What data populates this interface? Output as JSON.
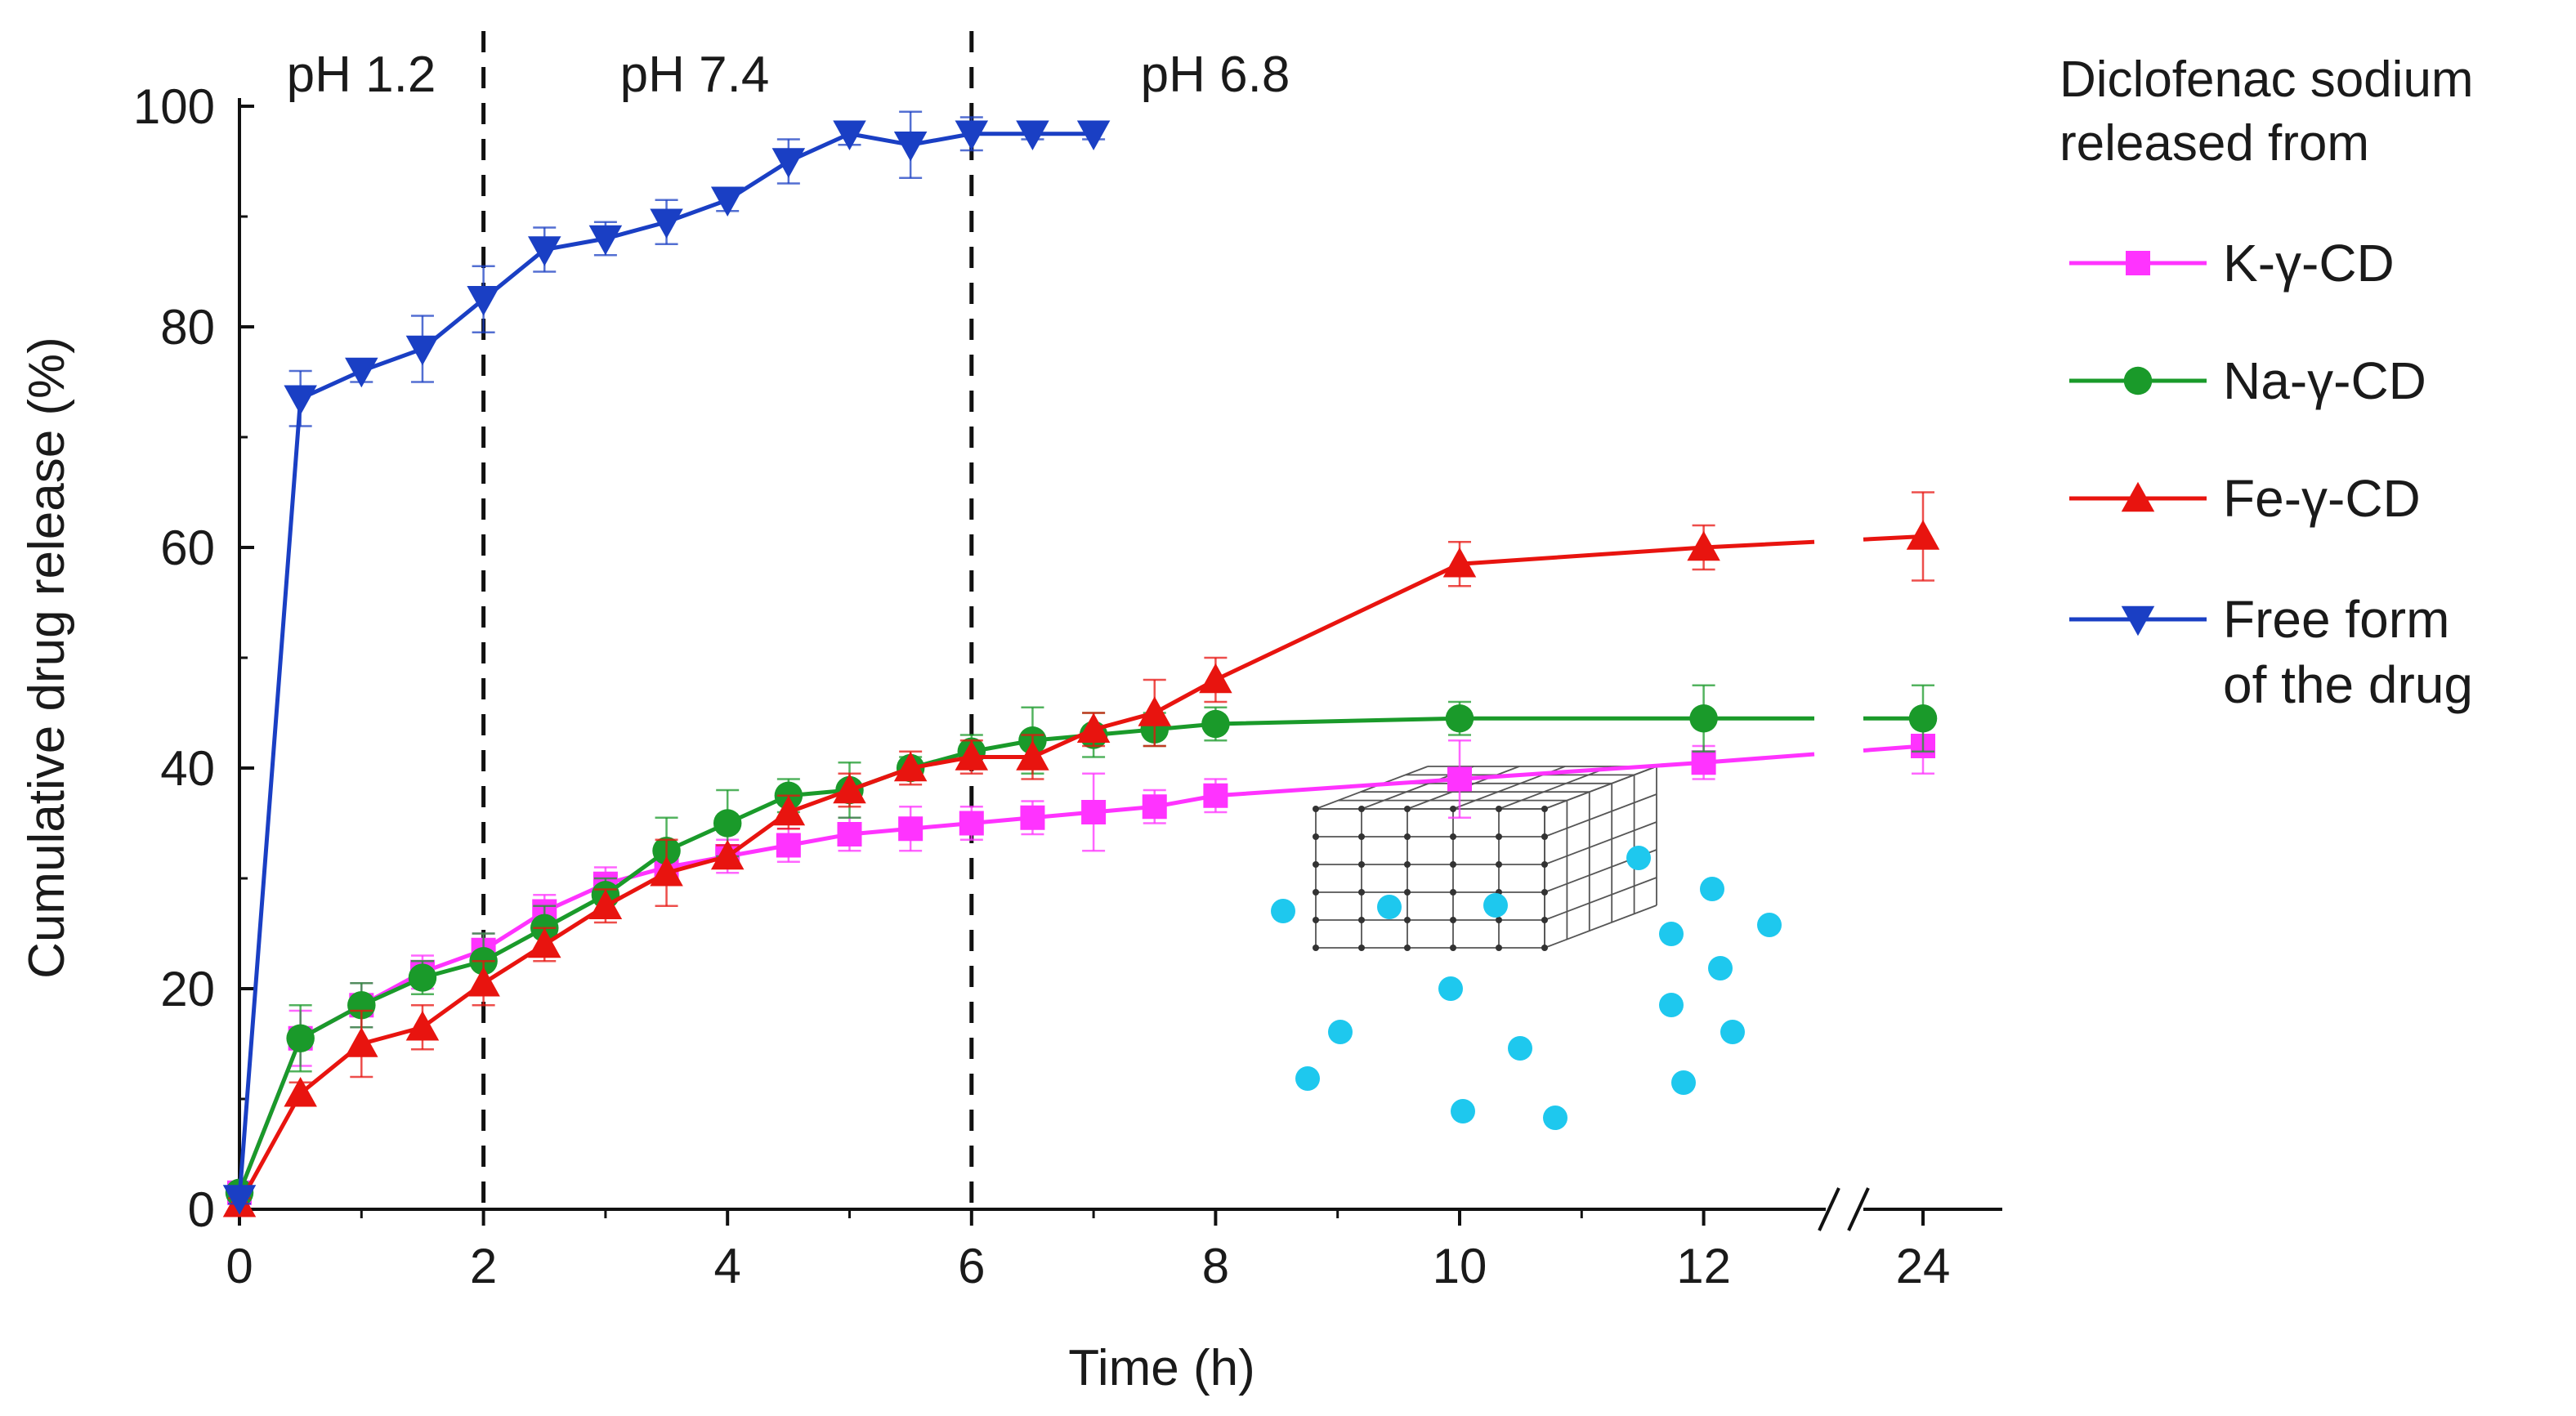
{
  "chart_data": {
    "type": "line",
    "title": "",
    "xlabel": "Time (h)",
    "ylabel": "Cumulative drug release (%)",
    "ylim": [
      0,
      100
    ],
    "x_ticks": [
      0,
      2,
      4,
      6,
      8,
      10,
      12,
      24
    ],
    "x_tick_labels": [
      "0",
      "2",
      "4",
      "6",
      "8",
      "10",
      "12",
      "24"
    ],
    "y_ticks": [
      0,
      20,
      40,
      60,
      80,
      100
    ],
    "y_tick_labels": [
      "0",
      "20",
      "40",
      "60",
      "80",
      "100"
    ],
    "axis_break": "between 12 and 24",
    "phase_dividers": [
      2,
      6
    ],
    "phase_labels": [
      "pH 1.2",
      "pH 7.4",
      "pH 6.8"
    ],
    "legend": {
      "title_lines": [
        "Diclofenac sodium",
        "released from"
      ],
      "placement": "right"
    },
    "series": [
      {
        "name": "K-γ-CD",
        "label_lines": [
          "K-γ-CD"
        ],
        "color": "#ff33ff",
        "marker": "square",
        "points": [
          {
            "x": 0,
            "y": 1.5,
            "err": 0.5
          },
          {
            "x": 0.5,
            "y": 15.5,
            "err": 2.5
          },
          {
            "x": 1,
            "y": 18.5,
            "err": 2
          },
          {
            "x": 1.5,
            "y": 21.5,
            "err": 1.5
          },
          {
            "x": 2,
            "y": 23.5,
            "err": 1.5
          },
          {
            "x": 2.5,
            "y": 27,
            "err": 1.5
          },
          {
            "x": 3,
            "y": 29.5,
            "err": 1.5
          },
          {
            "x": 3.5,
            "y": 31,
            "err": 1.5
          },
          {
            "x": 4,
            "y": 32,
            "err": 1.5
          },
          {
            "x": 4.5,
            "y": 33,
            "err": 1.5
          },
          {
            "x": 5,
            "y": 34,
            "err": 1.5
          },
          {
            "x": 5.5,
            "y": 34.5,
            "err": 2
          },
          {
            "x": 6,
            "y": 35,
            "err": 1.5
          },
          {
            "x": 6.5,
            "y": 35.5,
            "err": 1.5
          },
          {
            "x": 7,
            "y": 36,
            "err": 3.5
          },
          {
            "x": 7.5,
            "y": 36.5,
            "err": 1.5
          },
          {
            "x": 8,
            "y": 37.5,
            "err": 1.5
          },
          {
            "x": 10,
            "y": 39,
            "err": 3.5
          },
          {
            "x": 12,
            "y": 40.5,
            "err": 1.5
          },
          {
            "x": 24,
            "y": 42,
            "err": 2.5
          }
        ]
      },
      {
        "name": "Na-γ-CD",
        "label_lines": [
          "Na-γ-CD"
        ],
        "color": "#1a9a2a",
        "marker": "circle",
        "points": [
          {
            "x": 0,
            "y": 1.5,
            "err": 0.5
          },
          {
            "x": 0.5,
            "y": 15.5,
            "err": 3
          },
          {
            "x": 1,
            "y": 18.5,
            "err": 2
          },
          {
            "x": 1.5,
            "y": 21,
            "err": 1.5
          },
          {
            "x": 2,
            "y": 22.5,
            "err": 2.5
          },
          {
            "x": 2.5,
            "y": 25.5,
            "err": 2
          },
          {
            "x": 3,
            "y": 28.5,
            "err": 1.5
          },
          {
            "x": 3.5,
            "y": 32.5,
            "err": 3
          },
          {
            "x": 4,
            "y": 35,
            "err": 3
          },
          {
            "x": 4.5,
            "y": 37.5,
            "err": 1.5
          },
          {
            "x": 5,
            "y": 38,
            "err": 2.5
          },
          {
            "x": 5.5,
            "y": 40,
            "err": 1
          },
          {
            "x": 6,
            "y": 41.5,
            "err": 1.5
          },
          {
            "x": 6.5,
            "y": 42.5,
            "err": 3
          },
          {
            "x": 7,
            "y": 43,
            "err": 2
          },
          {
            "x": 7.5,
            "y": 43.5,
            "err": 1.5
          },
          {
            "x": 8,
            "y": 44,
            "err": 1.5
          },
          {
            "x": 10,
            "y": 44.5,
            "err": 1.5
          },
          {
            "x": 12,
            "y": 44.5,
            "err": 3
          },
          {
            "x": 24,
            "y": 44.5,
            "err": 3
          }
        ]
      },
      {
        "name": "Fe-γ-CD",
        "label_lines": [
          "Fe-γ-CD"
        ],
        "color": "#e8140f",
        "marker": "triangle-up",
        "points": [
          {
            "x": 0,
            "y": 0.5,
            "err": 0.5
          },
          {
            "x": 0.5,
            "y": 10.5,
            "err": 1
          },
          {
            "x": 1,
            "y": 15,
            "err": 3
          },
          {
            "x": 1.5,
            "y": 16.5,
            "err": 2
          },
          {
            "x": 2,
            "y": 20.5,
            "err": 2
          },
          {
            "x": 2.5,
            "y": 24,
            "err": 1.5
          },
          {
            "x": 3,
            "y": 27.5,
            "err": 1.5
          },
          {
            "x": 3.5,
            "y": 30.5,
            "err": 3
          },
          {
            "x": 4,
            "y": 32,
            "err": 1
          },
          {
            "x": 4.5,
            "y": 36,
            "err": 1.5
          },
          {
            "x": 5,
            "y": 38,
            "err": 1.5
          },
          {
            "x": 5.5,
            "y": 40,
            "err": 1.5
          },
          {
            "x": 6,
            "y": 41,
            "err": 1.5
          },
          {
            "x": 6.5,
            "y": 41,
            "err": 2
          },
          {
            "x": 7,
            "y": 43.5,
            "err": 1.5
          },
          {
            "x": 7.5,
            "y": 45,
            "err": 3
          },
          {
            "x": 8,
            "y": 48,
            "err": 2
          },
          {
            "x": 10,
            "y": 58.5,
            "err": 2
          },
          {
            "x": 12,
            "y": 60,
            "err": 2
          },
          {
            "x": 24,
            "y": 61,
            "err": 4
          }
        ]
      },
      {
        "name": "Free form of the drug",
        "label_lines": [
          "Free form",
          "of the drug"
        ],
        "color": "#1a3fc4",
        "marker": "triangle-down",
        "points": [
          {
            "x": 0,
            "y": 1,
            "err": 0.5
          },
          {
            "x": 0.5,
            "y": 73.5,
            "err": 2.5
          },
          {
            "x": 1,
            "y": 76,
            "err": 1
          },
          {
            "x": 1.5,
            "y": 78,
            "err": 3
          },
          {
            "x": 2,
            "y": 82.5,
            "err": 3
          },
          {
            "x": 2.5,
            "y": 87,
            "err": 2
          },
          {
            "x": 3,
            "y": 88,
            "err": 1.5
          },
          {
            "x": 3.5,
            "y": 89.5,
            "err": 2
          },
          {
            "x": 4,
            "y": 91.5,
            "err": 1
          },
          {
            "x": 4.5,
            "y": 95,
            "err": 2
          },
          {
            "x": 5,
            "y": 97.5,
            "err": 1
          },
          {
            "x": 5.5,
            "y": 96.5,
            "err": 3
          },
          {
            "x": 6,
            "y": 97.5,
            "err": 1.5
          },
          {
            "x": 6.5,
            "y": 97.5,
            "err": 0.5
          },
          {
            "x": 7,
            "y": 97.5,
            "err": 0.5
          }
        ]
      }
    ],
    "inset": {
      "description": "porous cube framework releasing particles",
      "particle_color": "#1ec8ee"
    }
  }
}
